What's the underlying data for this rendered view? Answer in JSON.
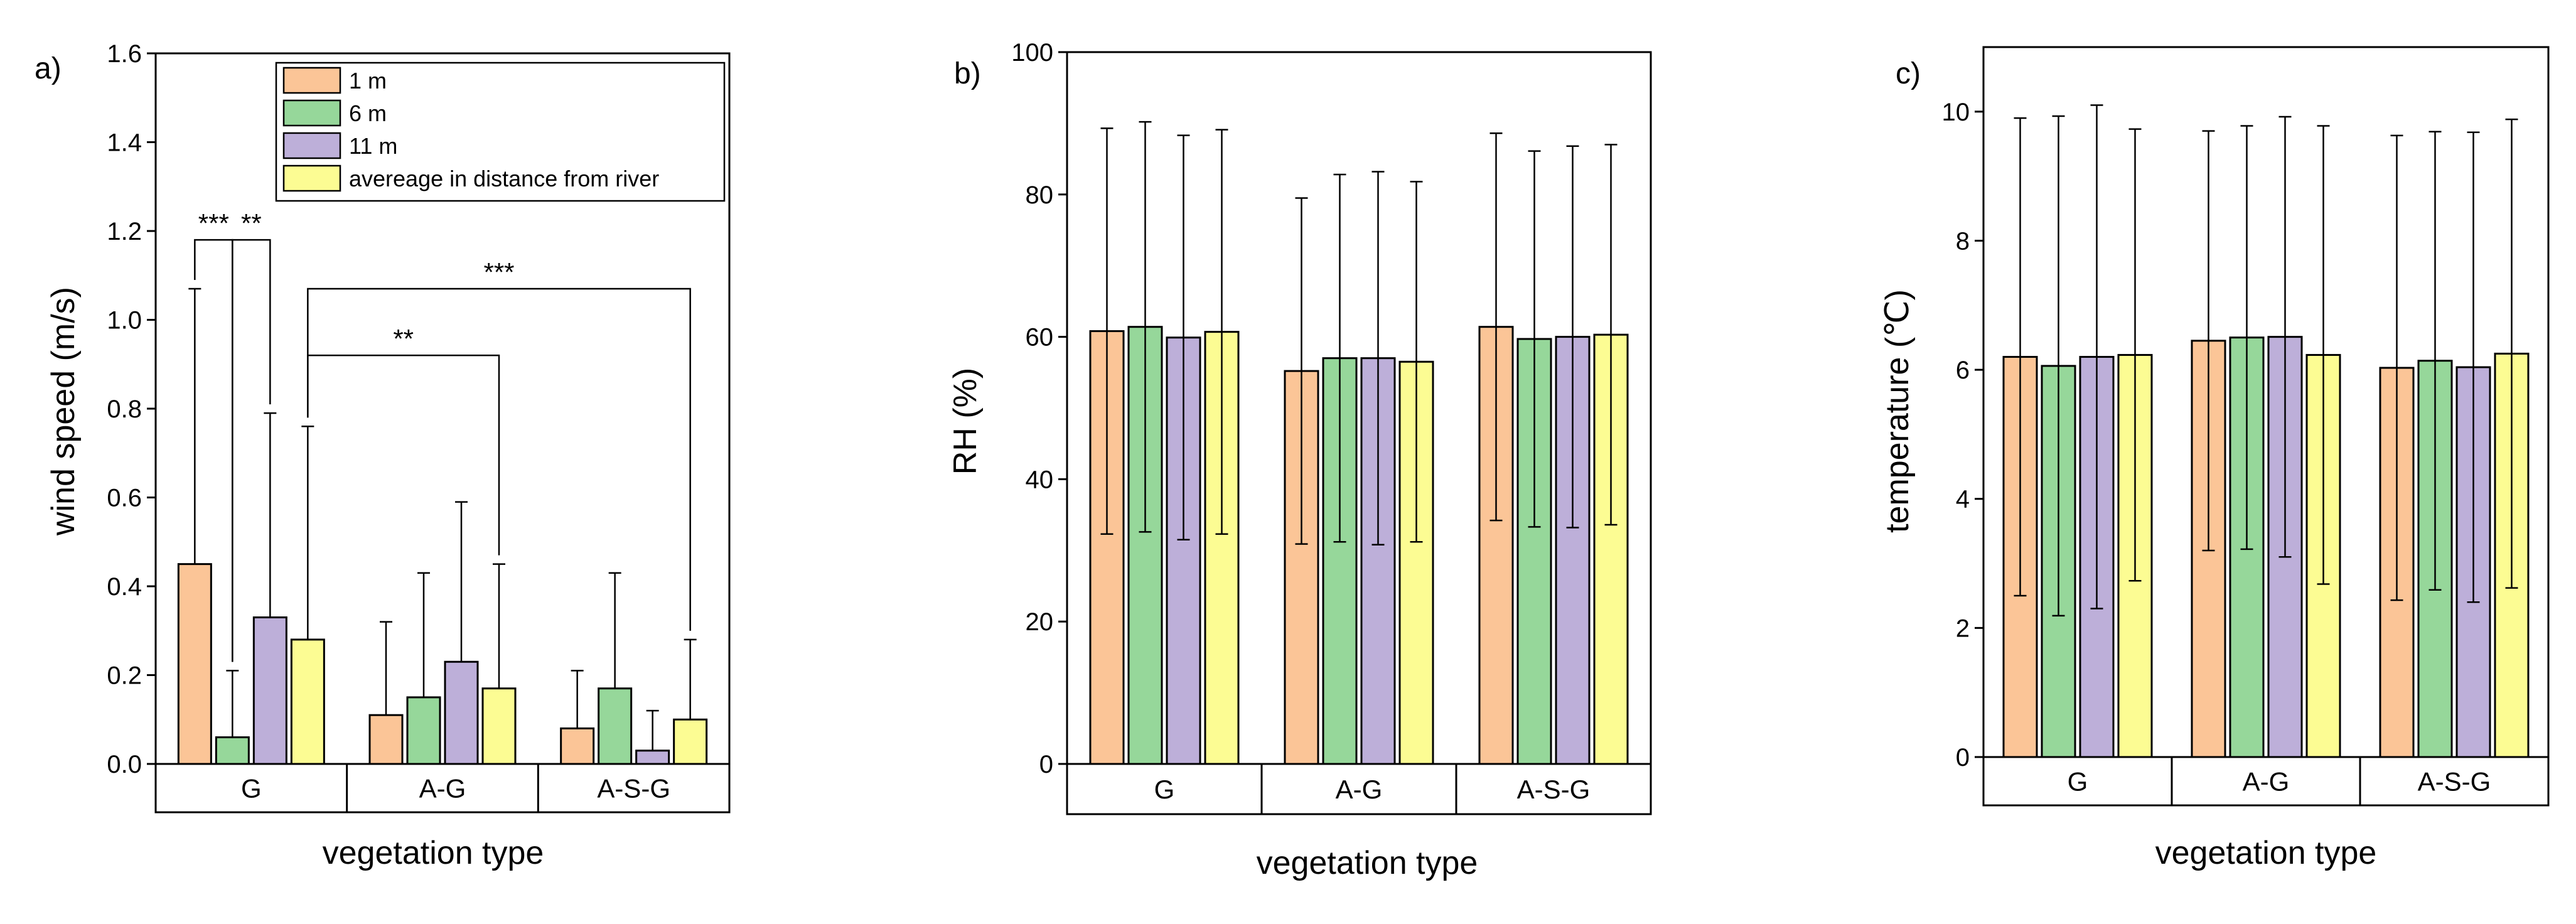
{
  "colors": {
    "1 m": "#FBC597",
    "6 m": "#96D79A",
    "11 m": "#BDAFD9",
    "avereage in distance from river": "#FCFC93"
  },
  "chart_data": [
    {
      "type": "bar",
      "panel": "a)",
      "xlabel": "vegetation type",
      "ylabel": "wind speed (m/s)",
      "ylim": [
        0,
        1.6
      ],
      "yticks": [
        "0.0",
        "0.2",
        "0.4",
        "0.6",
        "0.8",
        "1.0",
        "1.2",
        "1.4",
        "1.6"
      ],
      "categories": [
        "G",
        "A-G",
        "A-S-G"
      ],
      "legend_position": "top-right",
      "series": [
        {
          "name": "1 m",
          "values": [
            0.45,
            0.11,
            0.08
          ],
          "error": [
            0.62,
            0.21,
            0.13
          ]
        },
        {
          "name": "6 m",
          "values": [
            0.06,
            0.15,
            0.17
          ],
          "error": [
            0.15,
            0.28,
            0.26
          ]
        },
        {
          "name": "11 m",
          "values": [
            0.33,
            0.23,
            0.03
          ],
          "error": [
            0.46,
            0.36,
            0.09
          ]
        },
        {
          "name": "avereage in distance from river",
          "values": [
            0.28,
            0.17,
            0.1
          ],
          "error": [
            0.48,
            0.28,
            0.18
          ]
        }
      ],
      "annotations": [
        {
          "text": "***",
          "from": "G / 1 m",
          "to": "G / 6 m",
          "y": 1.18
        },
        {
          "text": "**",
          "from": "G / 6 m",
          "to": "G / 11 m",
          "y": 1.18
        },
        {
          "text": "***",
          "from": "G / average",
          "to": "A-S-G / average",
          "y": 1.07
        },
        {
          "text": "**",
          "from": "G / average",
          "to": "A-G / average",
          "y": 0.92
        }
      ]
    },
    {
      "type": "bar",
      "panel": "b)",
      "xlabel": "vegetation type",
      "ylabel": "RH (%)",
      "ylim": [
        0,
        100
      ],
      "yticks": [
        "0",
        "20",
        "40",
        "60",
        "80",
        "100"
      ],
      "categories": [
        "G",
        "A-G",
        "A-S-G"
      ],
      "series": [
        {
          "name": "1 m",
          "values": [
            60.8,
            55.2,
            61.4
          ],
          "error": [
            28.5,
            24.3,
            27.2
          ]
        },
        {
          "name": "6 m",
          "values": [
            61.4,
            57.0,
            59.7
          ],
          "error": [
            28.8,
            25.8,
            26.4
          ]
        },
        {
          "name": "11 m",
          "values": [
            59.9,
            57.0,
            60.0
          ],
          "error": [
            28.4,
            26.2,
            26.8
          ]
        },
        {
          "name": "avereage in distance from river",
          "values": [
            60.7,
            56.5,
            60.3
          ],
          "error": [
            28.4,
            25.3,
            26.7
          ]
        }
      ]
    },
    {
      "type": "bar",
      "panel": "c)",
      "xlabel": "vegetation type",
      "ylabel": "temperature (℃)",
      "ylim": [
        0,
        11
      ],
      "yticks": [
        "0",
        "2",
        "4",
        "6",
        "8",
        "10"
      ],
      "categories": [
        "G",
        "A-G",
        "A-S-G"
      ],
      "series": [
        {
          "name": "1 m",
          "values": [
            6.2,
            6.45,
            6.03
          ],
          "error": [
            3.7,
            3.25,
            3.6
          ]
        },
        {
          "name": "6 m",
          "values": [
            6.06,
            6.5,
            6.14
          ],
          "error": [
            3.87,
            3.28,
            3.55
          ]
        },
        {
          "name": "11 m",
          "values": [
            6.2,
            6.51,
            6.04
          ],
          "error": [
            3.9,
            3.41,
            3.64
          ]
        },
        {
          "name": "avereage in distance from river",
          "values": [
            6.23,
            6.23,
            6.25
          ],
          "error": [
            3.5,
            3.55,
            3.63
          ]
        }
      ]
    }
  ]
}
